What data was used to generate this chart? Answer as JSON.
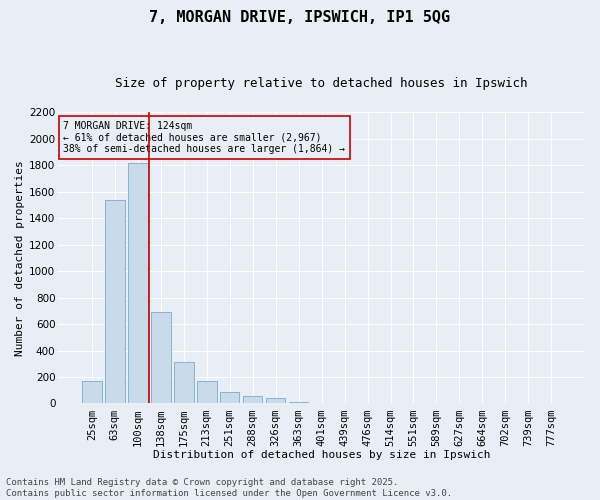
{
  "title": "7, MORGAN DRIVE, IPSWICH, IP1 5QG",
  "subtitle": "Size of property relative to detached houses in Ipswich",
  "xlabel": "Distribution of detached houses by size in Ipswich",
  "ylabel": "Number of detached properties",
  "bar_color": "#c9daea",
  "bar_edgecolor": "#7aaac8",
  "background_color": "#e8eef5",
  "grid_color": "#ffffff",
  "categories": [
    "25sqm",
    "63sqm",
    "100sqm",
    "138sqm",
    "175sqm",
    "213sqm",
    "251sqm",
    "288sqm",
    "326sqm",
    "363sqm",
    "401sqm",
    "439sqm",
    "476sqm",
    "514sqm",
    "551sqm",
    "589sqm",
    "627sqm",
    "664sqm",
    "702sqm",
    "739sqm",
    "777sqm"
  ],
  "values": [
    170,
    1540,
    1820,
    690,
    310,
    170,
    90,
    60,
    40,
    10,
    5,
    0,
    0,
    0,
    0,
    0,
    0,
    0,
    0,
    0,
    0
  ],
  "ylim": [
    0,
    2200
  ],
  "yticks": [
    0,
    200,
    400,
    600,
    800,
    1000,
    1200,
    1400,
    1600,
    1800,
    2000,
    2200
  ],
  "vline_x": 2.5,
  "vline_color": "#cc0000",
  "annotation_text": "7 MORGAN DRIVE: 124sqm\n← 61% of detached houses are smaller (2,967)\n38% of semi-detached houses are larger (1,864) →",
  "annotation_box_color": "#cc0000",
  "footer": "Contains HM Land Registry data © Crown copyright and database right 2025.\nContains public sector information licensed under the Open Government Licence v3.0.",
  "title_fontsize": 11,
  "subtitle_fontsize": 9,
  "label_fontsize": 8,
  "tick_fontsize": 7.5,
  "footer_fontsize": 6.5
}
